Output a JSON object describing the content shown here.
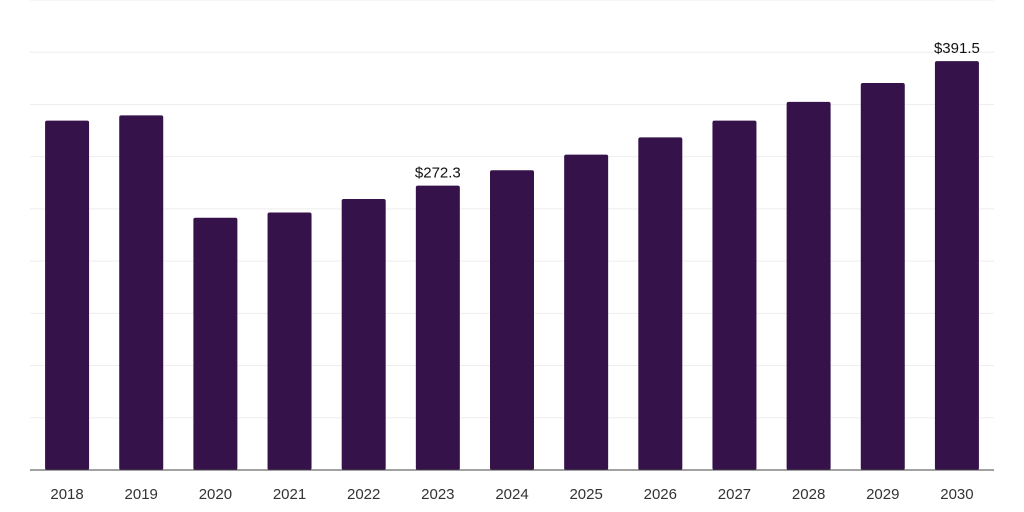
{
  "colors": {
    "bar": "#36124a",
    "grid": "#eeeeee",
    "axis": "#444444"
  },
  "chart_data": {
    "type": "bar",
    "categories": [
      "2018",
      "2019",
      "2020",
      "2021",
      "2022",
      "2023",
      "2024",
      "2025",
      "2026",
      "2027",
      "2028",
      "2029",
      "2030"
    ],
    "values": [
      334.5,
      339.5,
      241.5,
      246.5,
      259.5,
      272.3,
      287.0,
      302.0,
      318.5,
      334.5,
      352.5,
      370.5,
      391.5
    ],
    "data_labels": [
      {
        "index": 5,
        "text": "$272.3"
      },
      {
        "index": 12,
        "text": "$391.5"
      }
    ],
    "title": "",
    "xlabel": "",
    "ylabel": "",
    "ylim": [
      0,
      450
    ],
    "grid": true,
    "legend": "none"
  }
}
